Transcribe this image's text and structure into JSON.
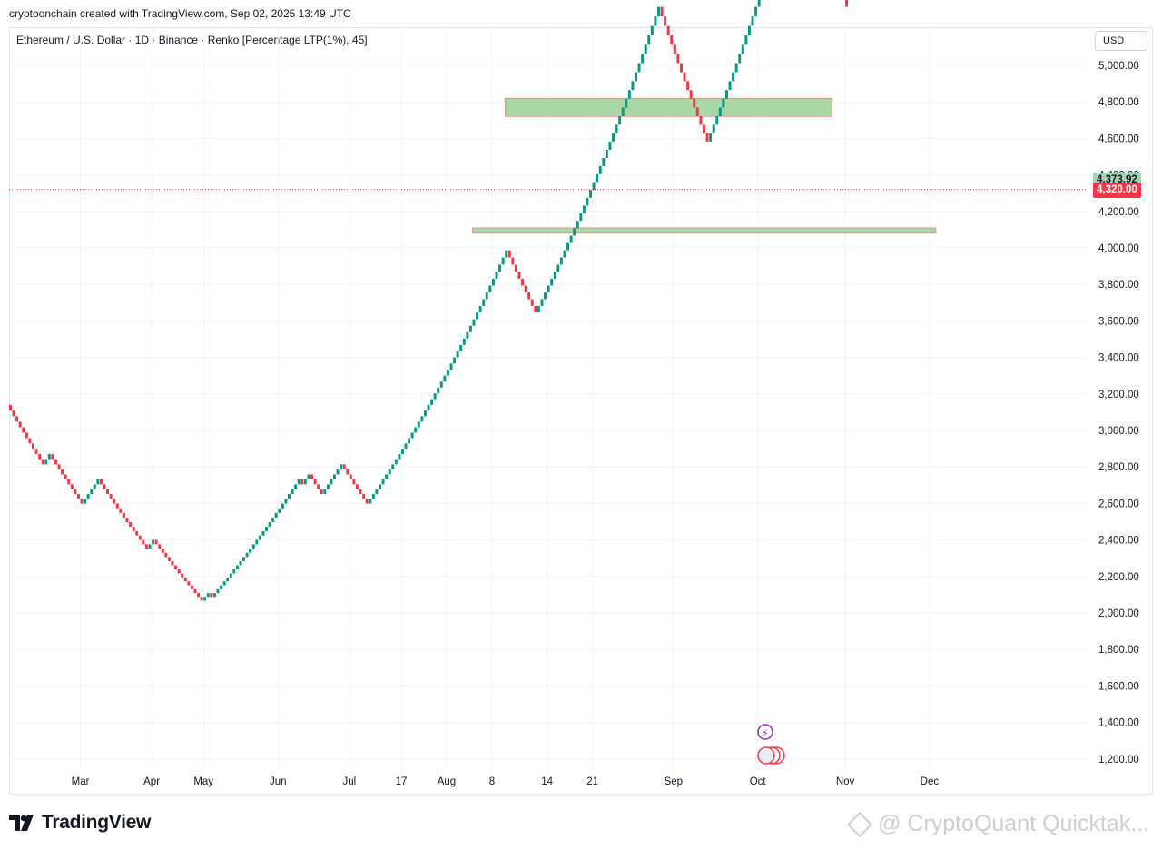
{
  "header": {
    "text": "cryptoonchain created with TradingView.com, Sep 02, 2025 13:49 UTC"
  },
  "symbol": {
    "text": "Ethereum / U.S. Dollar · 1D · Binance · Renko [Percentage LTP(1%), 45]"
  },
  "currency": {
    "label": "USD"
  },
  "price_badges": {
    "last": "4,373.92",
    "current": "4,320.00",
    "last_color": "#a5d6b4",
    "current_color": "#f23645"
  },
  "branding": {
    "logo_text": "TradingView",
    "watermark": "@ CryptoQuant Quicktak..."
  },
  "colors": {
    "up": "#089981",
    "down": "#f23645",
    "zone_fill": "#a8d8a8",
    "zone_border": "#e57373"
  },
  "chart_data": {
    "type": "renko",
    "title": "Ethereum / U.S. Dollar · 1D · Binance · Renko [Percentage LTP(1%), 45]",
    "ylabel": "USD",
    "ylim": [
      1100,
      5100
    ],
    "y_ticks": [
      "5,000.00",
      "4,800.00",
      "4,600.00",
      "4,400.00",
      "4,200.00",
      "4,000.00",
      "3,800.00",
      "3,600.00",
      "3,400.00",
      "3,200.00",
      "3,000.00",
      "2,800.00",
      "2,600.00",
      "2,400.00",
      "2,200.00",
      "2,000.00",
      "1,800.00",
      "1,600.00",
      "1,400.00",
      "1,200.00"
    ],
    "y_tick_values": [
      5000,
      4800,
      4600,
      4400,
      4200,
      4000,
      3800,
      3600,
      3400,
      3200,
      3000,
      2800,
      2600,
      2400,
      2200,
      2000,
      1800,
      1600,
      1400,
      1200
    ],
    "x_ticks": [
      {
        "label": "Mar",
        "i": 22
      },
      {
        "label": "Apr",
        "i": 44
      },
      {
        "label": "May",
        "i": 60
      },
      {
        "label": "Jun",
        "i": 83
      },
      {
        "label": "Jul",
        "i": 105
      },
      {
        "label": "17",
        "i": 121
      },
      {
        "label": "Aug",
        "i": 135
      },
      {
        "label": "8",
        "i": 149
      },
      {
        "label": "14",
        "i": 166
      },
      {
        "label": "21",
        "i": 180
      },
      {
        "label": "Sep",
        "i": 205
      },
      {
        "label": "Oct",
        "i": 231
      },
      {
        "label": "Nov",
        "i": 258
      },
      {
        "label": "Dec",
        "i": 284
      }
    ],
    "brick_pct": 1,
    "start_price": 3140,
    "bricks": "DDDDDDDDDDDUUDDDDDDDDDDUUUUUDDDDDDDDDDDDDDDUUDDDDDDDDDDDDDDDUUDUUUUUUUUUUUUUUUUUUUUUUUUUUUDUUDDDDUUUUUUDDDDDDDDUUUUUUUUUUUUUUUUUUUUUUUUUUUUUUUUUUUUUUUUUUUDDDDDDDDDUUUUUUUUUUUUUUUUUUUUUUUUUUUUUUUUUUUUUUDDDDDDDDDDDDDDDUUUUUUUUUUUUUUUUUUUUUUUUUUDDDDDDDDDUUUDDDDD",
    "zones": [
      {
        "name": "resistance-zone",
        "y_low": 4720,
        "y_high": 4820,
        "i_start": 153,
        "i_end": 254
      },
      {
        "name": "support-zone",
        "y_low": 4080,
        "y_high": 4110,
        "i_start": 143,
        "i_end": 286
      }
    ],
    "last_price": 4373.92,
    "current_price": 4320.0
  }
}
